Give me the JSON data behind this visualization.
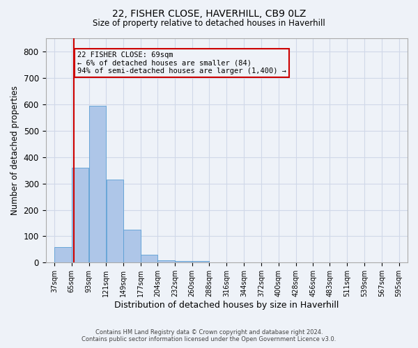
{
  "title": "22, FISHER CLOSE, HAVERHILL, CB9 0LZ",
  "subtitle": "Size of property relative to detached houses in Haverhill",
  "xlabel": "Distribution of detached houses by size in Haverhill",
  "ylabel": "Number of detached properties",
  "footer_line1": "Contains HM Land Registry data © Crown copyright and database right 2024.",
  "footer_line2": "Contains public sector information licensed under the Open Government Licence v3.0.",
  "bar_left_edges": [
    37,
    65,
    93,
    121,
    149,
    177,
    204,
    232,
    260,
    288,
    316,
    344,
    372,
    400,
    428,
    456,
    483,
    511,
    539,
    567
  ],
  "bar_widths": [
    28,
    28,
    28,
    28,
    28,
    27,
    28,
    28,
    28,
    28,
    28,
    28,
    28,
    28,
    28,
    27,
    28,
    28,
    28,
    28
  ],
  "bar_heights": [
    60,
    360,
    595,
    315,
    125,
    30,
    10,
    5,
    5,
    0,
    0,
    0,
    0,
    0,
    0,
    0,
    0,
    0,
    0,
    0
  ],
  "bar_color": "#aec6e8",
  "bar_edge_color": "#5a9fd4",
  "grid_color": "#d0d8e8",
  "background_color": "#eef2f8",
  "property_line_x": 69,
  "property_line_color": "#cc0000",
  "annotation_line1": "22 FISHER CLOSE: 69sqm",
  "annotation_line2": "← 6% of detached houses are smaller (84)",
  "annotation_line3": "94% of semi-detached houses are larger (1,400) →",
  "annotation_box_color": "#cc0000",
  "ylim": [
    0,
    850
  ],
  "yticks": [
    0,
    100,
    200,
    300,
    400,
    500,
    600,
    700,
    800
  ],
  "xlim_min": 23,
  "xlim_max": 609,
  "xtick_labels": [
    "37sqm",
    "65sqm",
    "93sqm",
    "121sqm",
    "149sqm",
    "177sqm",
    "204sqm",
    "232sqm",
    "260sqm",
    "288sqm",
    "316sqm",
    "344sqm",
    "372sqm",
    "400sqm",
    "428sqm",
    "456sqm",
    "483sqm",
    "511sqm",
    "539sqm",
    "567sqm",
    "595sqm"
  ],
  "xtick_positions": [
    37,
    65,
    93,
    121,
    149,
    177,
    204,
    232,
    260,
    288,
    316,
    344,
    372,
    400,
    428,
    456,
    483,
    511,
    539,
    567,
    595
  ]
}
